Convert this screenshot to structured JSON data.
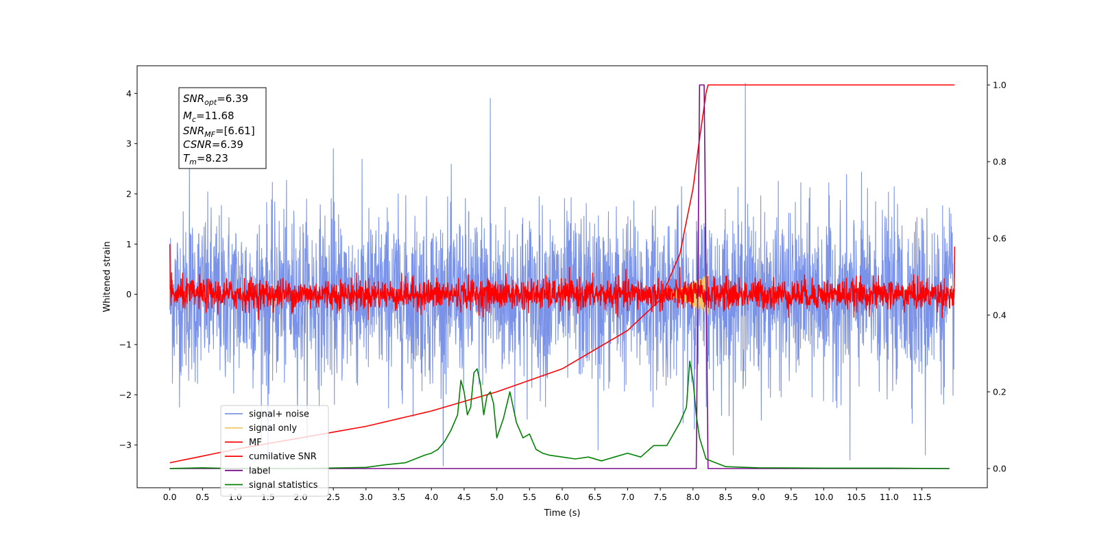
{
  "chart_data": {
    "type": "line",
    "xlabel": "Time (s)",
    "ylabel": "Whitened strain",
    "xlim": [
      -0.5,
      12.5
    ],
    "ylim": [
      -3.85,
      4.55
    ],
    "y2lim": [
      -0.05,
      1.05
    ],
    "x_ticks": [
      0.0,
      0.5,
      1.0,
      1.5,
      2.0,
      2.5,
      3.0,
      3.5,
      4.0,
      4.5,
      5.0,
      5.5,
      6.0,
      6.5,
      7.0,
      7.5,
      8.0,
      8.5,
      9.0,
      9.5,
      10.0,
      10.5,
      11.0,
      11.5
    ],
    "x_tick_labels": [
      "0.0",
      "0.5",
      "1.0",
      "1.5",
      "2.0",
      "2.5",
      "3.0",
      "3.5",
      "4.0",
      "4.5",
      "5.0",
      "5.5",
      "6.0",
      "6.5",
      "7.0",
      "7.5",
      "8.0",
      "8.5",
      "9.0",
      "9.5",
      "10.0",
      "10.5",
      "11.0",
      "11.5"
    ],
    "y_ticks": [
      -3,
      -2,
      -1,
      0,
      1,
      2,
      3,
      4
    ],
    "y_tick_labels": [
      "−3",
      "−2",
      "−1",
      "0",
      "1",
      "2",
      "3",
      "4"
    ],
    "y2_ticks": [
      0.0,
      0.2,
      0.4,
      0.6,
      0.8,
      1.0
    ],
    "y2_tick_labels": [
      "0.0",
      "0.2",
      "0.4",
      "0.6",
      "0.8",
      "1.0"
    ],
    "legend_position": "lower-left",
    "series": [
      {
        "name": "signal+ noise",
        "color": "#7a93e8",
        "axis": "left",
        "kind": "noise",
        "x_range": [
          0.0,
          12.0
        ],
        "band": [
          -1.4,
          1.3
        ],
        "peaks": [
          [
            0.3,
            2.7
          ],
          [
            1.5,
            -3.2
          ],
          [
            4.9,
            3.9
          ],
          [
            8.8,
            4.2
          ],
          [
            10.4,
            -3.3
          ],
          [
            11.55,
            -3.2
          ],
          [
            6.55,
            -3.1
          ],
          [
            2.5,
            2.9
          ]
        ]
      },
      {
        "name": "signal only",
        "color": "#f5c76a",
        "axis": "left",
        "kind": "chirp",
        "x_range": [
          7.5,
          8.23
        ],
        "amplitude_max": 0.4
      },
      {
        "name": "MF",
        "color": "#ff0000",
        "axis": "left",
        "kind": "noise",
        "x_range": [
          0.0,
          12.0
        ],
        "band": [
          -0.2,
          0.2
        ],
        "start_value": 1.0,
        "end_value": 0.95
      },
      {
        "name": "cumilative SNR",
        "color": "#ff0000",
        "axis": "right",
        "x": [
          0.0,
          1.0,
          2.0,
          3.0,
          4.0,
          5.0,
          6.0,
          7.0,
          7.5,
          7.8,
          8.0,
          8.1,
          8.2,
          8.23,
          12.0
        ],
        "y": [
          0.015,
          0.05,
          0.08,
          0.11,
          0.15,
          0.2,
          0.26,
          0.36,
          0.44,
          0.56,
          0.73,
          0.86,
          0.98,
          1.0,
          1.0
        ]
      },
      {
        "name": "label",
        "color": "#7b0c8c",
        "axis": "right",
        "x": [
          0.0,
          8.05,
          8.1,
          8.17,
          8.23,
          11.92
        ],
        "y": [
          0.0,
          0.0,
          1.0,
          1.0,
          0.0,
          0.0
        ]
      },
      {
        "name": "signal statistics",
        "color": "#008000",
        "axis": "right",
        "x": [
          0.0,
          0.5,
          1.0,
          2.0,
          3.0,
          3.3,
          3.6,
          3.9,
          4.0,
          4.1,
          4.2,
          4.3,
          4.4,
          4.45,
          4.5,
          4.55,
          4.6,
          4.65,
          4.7,
          4.75,
          4.8,
          4.85,
          4.9,
          4.95,
          5.0,
          5.1,
          5.2,
          5.3,
          5.4,
          5.5,
          5.6,
          5.7,
          5.8,
          6.0,
          6.2,
          6.4,
          6.6,
          6.8,
          7.0,
          7.2,
          7.4,
          7.6,
          7.8,
          7.9,
          7.95,
          8.0,
          8.05,
          8.1,
          8.2,
          8.3,
          8.5,
          9.0,
          10.0,
          11.0,
          11.92
        ],
        "y": [
          0.0,
          0.002,
          0.0,
          0.0,
          0.003,
          0.01,
          0.015,
          0.035,
          0.04,
          0.05,
          0.07,
          0.1,
          0.14,
          0.23,
          0.2,
          0.14,
          0.16,
          0.25,
          0.26,
          0.22,
          0.14,
          0.19,
          0.2,
          0.17,
          0.08,
          0.13,
          0.2,
          0.12,
          0.08,
          0.09,
          0.05,
          0.04,
          0.035,
          0.03,
          0.025,
          0.03,
          0.02,
          0.03,
          0.04,
          0.03,
          0.06,
          0.06,
          0.12,
          0.16,
          0.28,
          0.23,
          0.14,
          0.08,
          0.025,
          0.018,
          0.005,
          0.002,
          0.001,
          0.001,
          0.0
        ]
      }
    ],
    "info_box": {
      "snr_opt_base": "SNR",
      "snr_opt_sub": "opt",
      "snr_opt_val": "=6.39",
      "mc_base": "M",
      "mc_sub": "c",
      "mc_val": "=11.68",
      "snr_mf_base": "SNR",
      "snr_mf_sub": "MF",
      "snr_mf_val": "=[6.61]",
      "csnr_base": "CSNR",
      "csnr_val": "=6.39",
      "tm_base": "T",
      "tm_sub": "m",
      "tm_val": "=8.23"
    }
  }
}
